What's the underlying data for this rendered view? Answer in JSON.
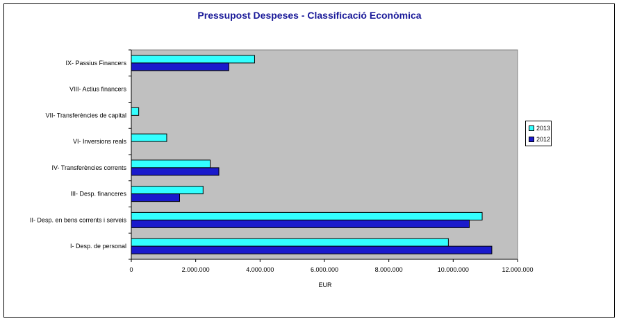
{
  "chart_data": {
    "type": "bar",
    "orientation": "horizontal",
    "title": "Pressupost Despeses - Classificació Econòmica",
    "xlabel": "EUR",
    "ylabel": "",
    "xlim": [
      0,
      12000000
    ],
    "x_ticks": [
      "0",
      "2.000.000",
      "4.000.000",
      "6.000.000",
      "8.000.000",
      "10.000.000",
      "12.000.000"
    ],
    "categories": [
      "IX- Passius Financers",
      "VIII- Actius financers",
      "VII- Transferències de capital",
      "VI- Inversions reals",
      "IV- Transferències corrents",
      "III- Desp. financeres",
      "II- Desp. en bens corrents i serveis",
      "I- Desp. de personal"
    ],
    "series": [
      {
        "name": "2013",
        "color": "#33ffff",
        "values": [
          3830000,
          0,
          230000,
          1100000,
          2450000,
          2230000,
          10900000,
          9850000
        ]
      },
      {
        "name": "2012",
        "color": "#1a1acc",
        "values": [
          3030000,
          0,
          0,
          0,
          2720000,
          1500000,
          10500000,
          11200000
        ]
      }
    ],
    "legend_position": "right",
    "grid": false,
    "plot_background": "#c0c0c0"
  }
}
